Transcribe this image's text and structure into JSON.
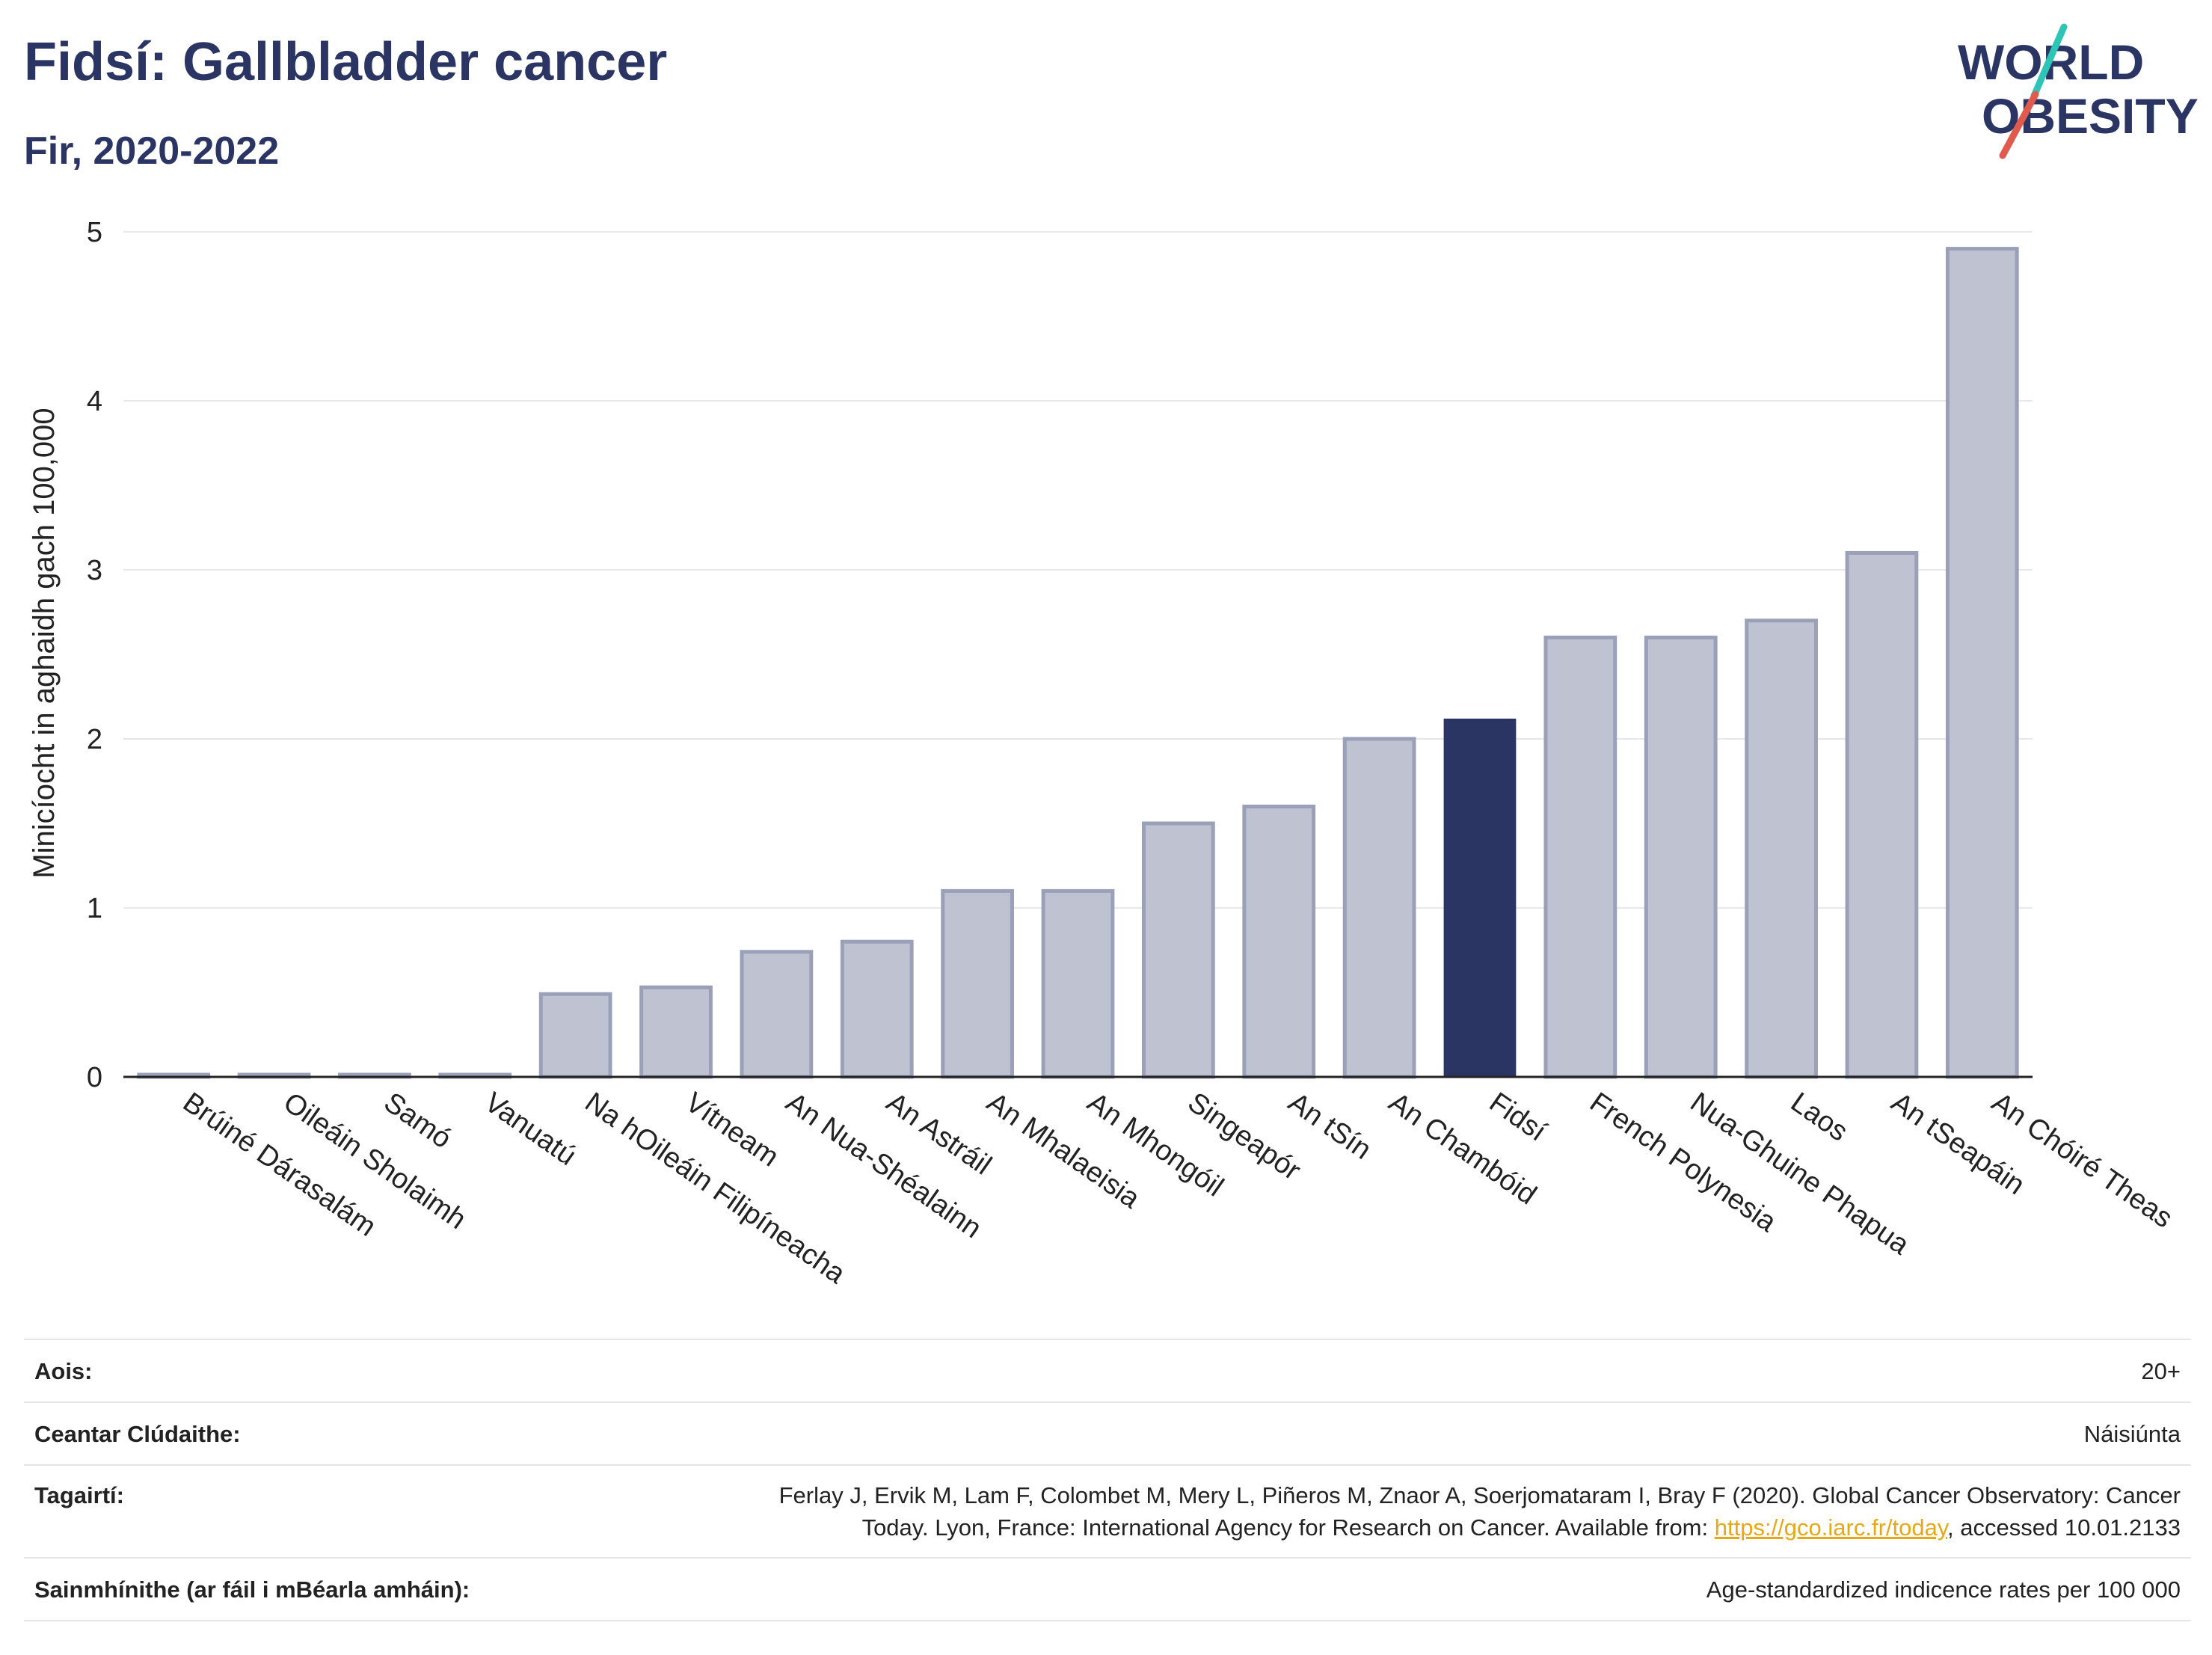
{
  "header": {
    "title": "Fidsí: Gallbladder cancer",
    "subtitle": "Fir, 2020-2022"
  },
  "logo": {
    "line1": "WORLD",
    "line2": "OBESITY",
    "colors": {
      "text": "#2b3563",
      "slash_teal": "#2ec4b6",
      "slash_red": "#e05a4e"
    }
  },
  "colors": {
    "highlight": "#2b3563",
    "bar_fill": "#bfc3d1",
    "bar_stroke": "#9aa0b8",
    "grid": "#e6e8ee",
    "axis": "#222222"
  },
  "chart_data": {
    "type": "bar",
    "title": "Fidsí: Gallbladder cancer",
    "subtitle": "Fir, 2020-2022",
    "xlabel": "",
    "ylabel": "Minicíocht in aghaidh gach 100,000",
    "ylim": [
      0,
      5
    ],
    "yticks": [
      0,
      1,
      2,
      3,
      4,
      5
    ],
    "grid": true,
    "highlight_category": "Fidsí",
    "categories": [
      "Brúiné Dárasalám",
      "Oileáin Sholaimh",
      "Samó",
      "Vanuatú",
      "Na hOileáin Filipíneacha",
      "Vítneam",
      "An Nua-Shéalainn",
      "An Astráil",
      "An Mhalaeisia",
      "An Mhongóil",
      "Singeapór",
      "An tSín",
      "An Chambóid",
      "Fidsí",
      "French Polynesia",
      "Nua-Ghuine Phapua",
      "Laos",
      "An tSeapáin",
      "An Chóiré Theas"
    ],
    "values": [
      0,
      0,
      0,
      0,
      0.49,
      0.53,
      0.74,
      0.8,
      1.1,
      1.1,
      1.5,
      1.6,
      2.0,
      2.12,
      2.6,
      2.6,
      2.7,
      3.1,
      4.9
    ]
  },
  "meta": {
    "rows": [
      {
        "key": "Aois:",
        "value": "20+"
      },
      {
        "key": "Ceantar Clúdaithe:",
        "value": "Náisiúnta"
      },
      {
        "key": "Tagairtí:",
        "value_line1": "Ferlay J, Ervik M, Lam F, Colombet M, Mery L, Piñeros M, Znaor A, Soerjomataram I, Bray F (2020). Global Cancer Observatory: Cancer",
        "value_line2_pre": "Today. Lyon, France: International Agency for Research on Cancer. Available from: ",
        "link": "https://gco.iarc.fr/today",
        "value_line2_post": ", accessed 10.01.2133"
      },
      {
        "key": "Sainmhínithe (ar fáil i mBéarla amháin):",
        "value": "Age-standardized indicence rates per 100 000"
      }
    ]
  }
}
